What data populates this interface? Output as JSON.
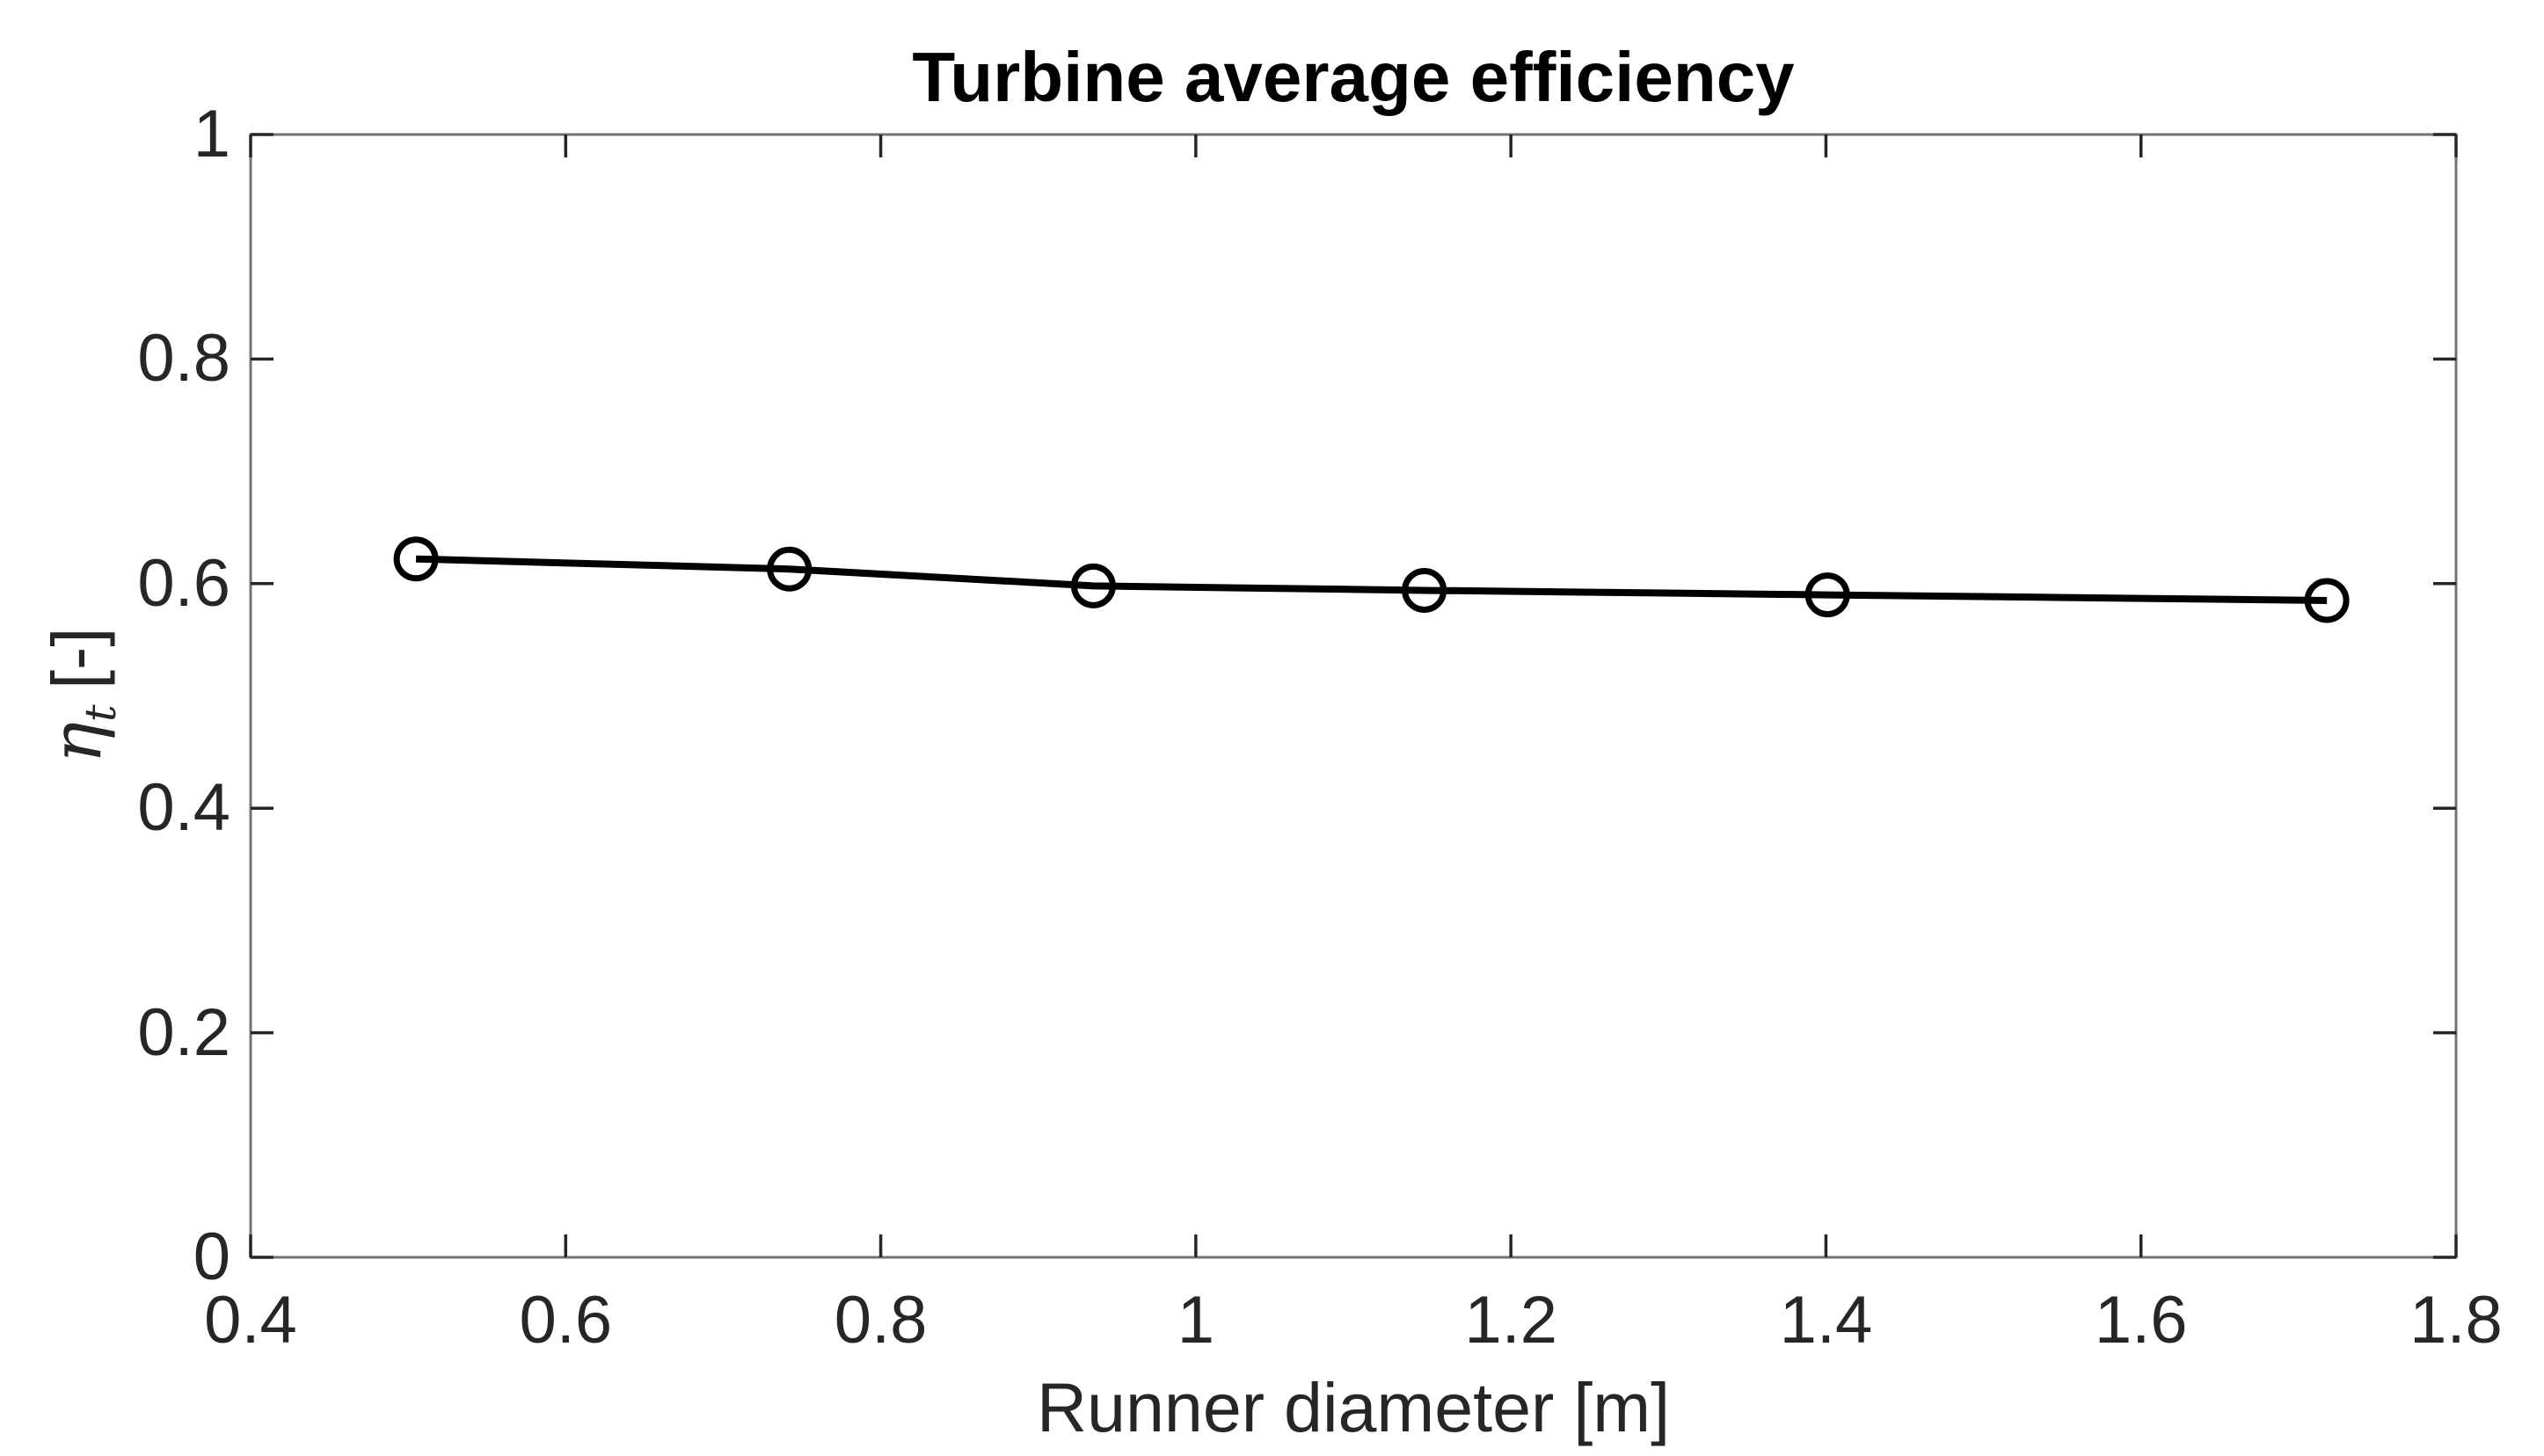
{
  "figure": {
    "background": "#ffffff"
  },
  "chart_data": {
    "type": "line",
    "title": "Turbine average efficiency",
    "xlabel": "Runner diameter [m]",
    "ylabel": {
      "symbol": "η",
      "subscript": "t",
      "unit": "[-]"
    },
    "xlim": [
      0.4,
      1.8
    ],
    "ylim": [
      0,
      1
    ],
    "xticks": [
      0.4,
      0.6,
      0.8,
      1,
      1.2,
      1.4,
      1.6,
      1.8
    ],
    "xtick_labels": [
      "0.4",
      "0.6",
      "0.8",
      "1",
      "1.2",
      "1.4",
      "1.6",
      "1.8"
    ],
    "yticks": [
      0,
      0.2,
      0.4,
      0.6,
      0.8,
      1
    ],
    "ytick_labels": [
      "0",
      "0.2",
      "0.4",
      "0.6",
      "0.8",
      "1"
    ],
    "grid": false,
    "legend": null,
    "series": [
      {
        "name": "turbine average efficiency",
        "marker": "open-circle",
        "color": "#000000",
        "x": [
          0.505,
          0.742,
          0.935,
          1.145,
          1.401,
          1.718
        ],
        "y": [
          0.622,
          0.613,
          0.598,
          0.594,
          0.59,
          0.585
        ]
      }
    ],
    "colors": {
      "box": "#737373",
      "tick": "#262626",
      "text": "#262626",
      "title": "#000000",
      "line": "#000000"
    }
  }
}
